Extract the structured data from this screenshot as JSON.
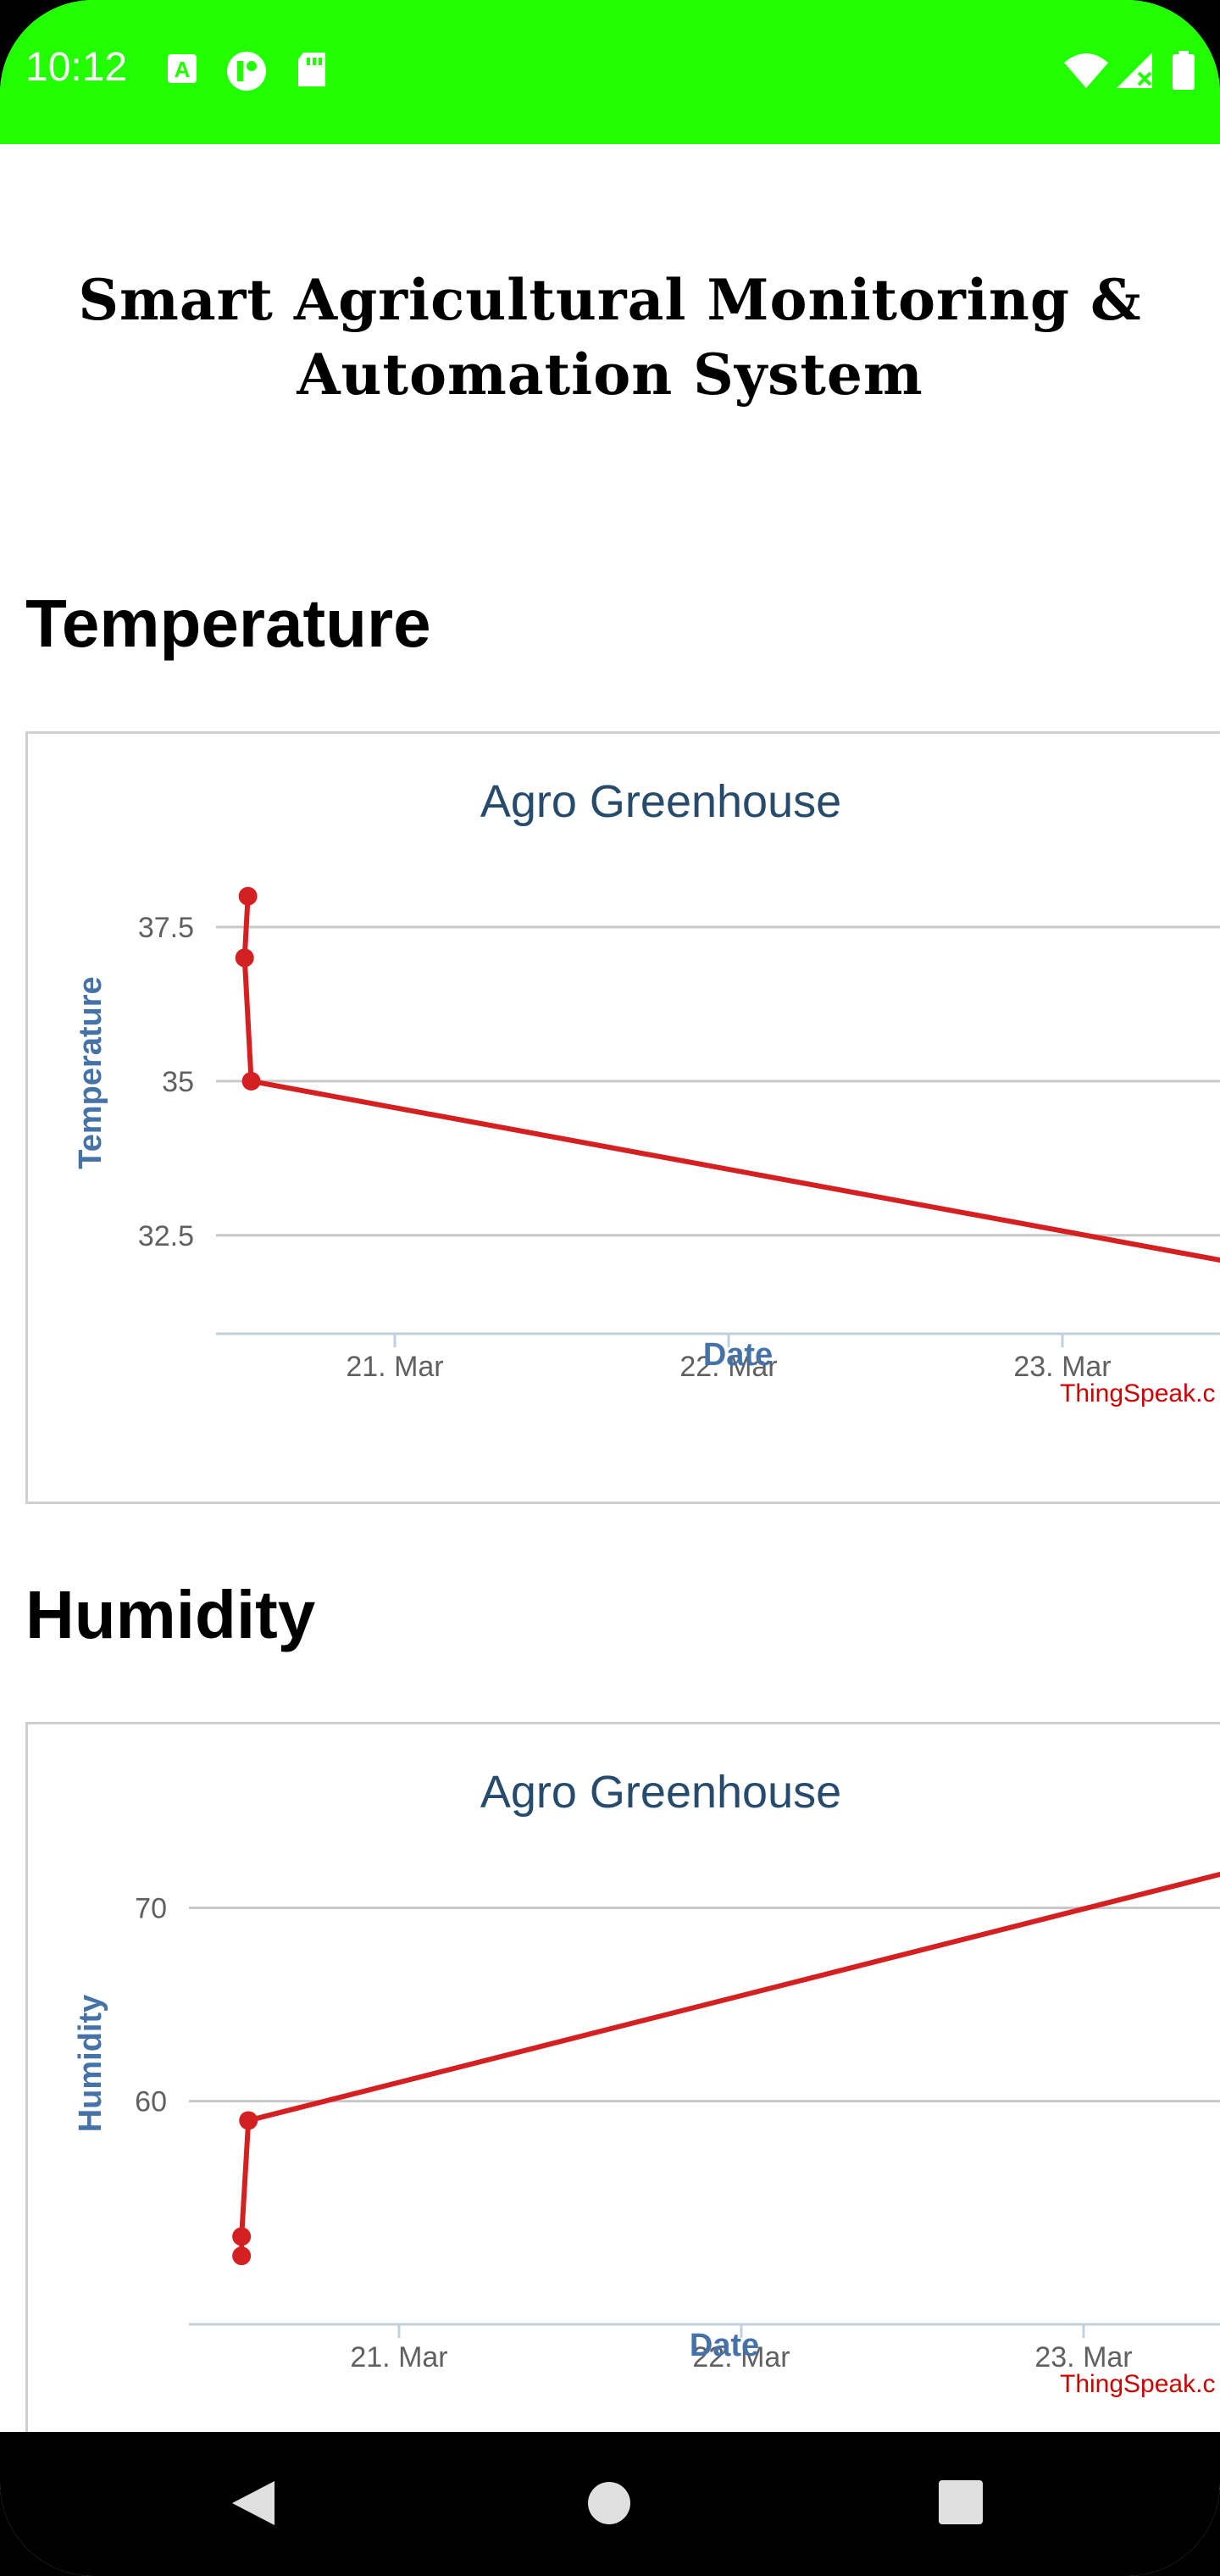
{
  "status_bar": {
    "time": "10:12",
    "background_color": "#22ff00",
    "left_icons": [
      "font-download-icon",
      "notification-icon",
      "sd-card-icon"
    ],
    "right_icons": [
      "wifi-icon",
      "signal-icon",
      "battery-icon"
    ]
  },
  "app": {
    "title_line1": "Smart Agricultural Monitoring &",
    "title_line2": "Automation System"
  },
  "sections": {
    "temperature_heading": "Temperature",
    "humidity_heading": "Humidity"
  },
  "charts": {
    "temperature": {
      "title": "Agro Greenhouse",
      "ylabel": "Temperature",
      "xlabel": "Date",
      "y_ticks": [
        "37.5",
        "35",
        "32.5"
      ],
      "x_ticks": [
        "21. Mar",
        "22. Mar",
        "23. Mar"
      ],
      "credit": "ThingSpeak.c"
    },
    "humidity": {
      "title": "Agro Greenhouse",
      "ylabel": "Humidity",
      "xlabel": "Date",
      "y_ticks": [
        "70",
        "60"
      ],
      "x_ticks": [
        "21. Mar",
        "22. Mar",
        "23. Mar"
      ],
      "credit": "ThingSpeak.c"
    }
  },
  "chart_data": [
    {
      "type": "line",
      "title": "Agro Greenhouse",
      "xlabel": "Date",
      "ylabel": "Temperature",
      "x_unit": "days (March)",
      "x_tick_labels": [
        "21. Mar",
        "22. Mar",
        "23. Mar"
      ],
      "ylim": [
        31.7,
        38.6
      ],
      "grid": true,
      "line_color": "#d42020",
      "series": [
        {
          "x": [
            20.56,
            20.55,
            20.57,
            23.57
          ],
          "y": [
            38.0,
            37.0,
            35.0,
            32.0
          ]
        }
      ]
    },
    {
      "type": "line",
      "title": "Agro Greenhouse",
      "xlabel": "Date",
      "ylabel": "Humidity",
      "x_unit": "days (March)",
      "x_tick_labels": [
        "21. Mar",
        "22. Mar",
        "23. Mar"
      ],
      "ylim": [
        51,
        73
      ],
      "grid": true,
      "line_color": "#d42020",
      "series": [
        {
          "x": [
            20.54,
            20.54,
            20.56,
            23.57
          ],
          "y": [
            52.0,
            53.0,
            59.0,
            72.5
          ]
        }
      ]
    }
  ],
  "navigation": {
    "buttons": [
      "back-button",
      "home-button",
      "recents-button"
    ]
  }
}
